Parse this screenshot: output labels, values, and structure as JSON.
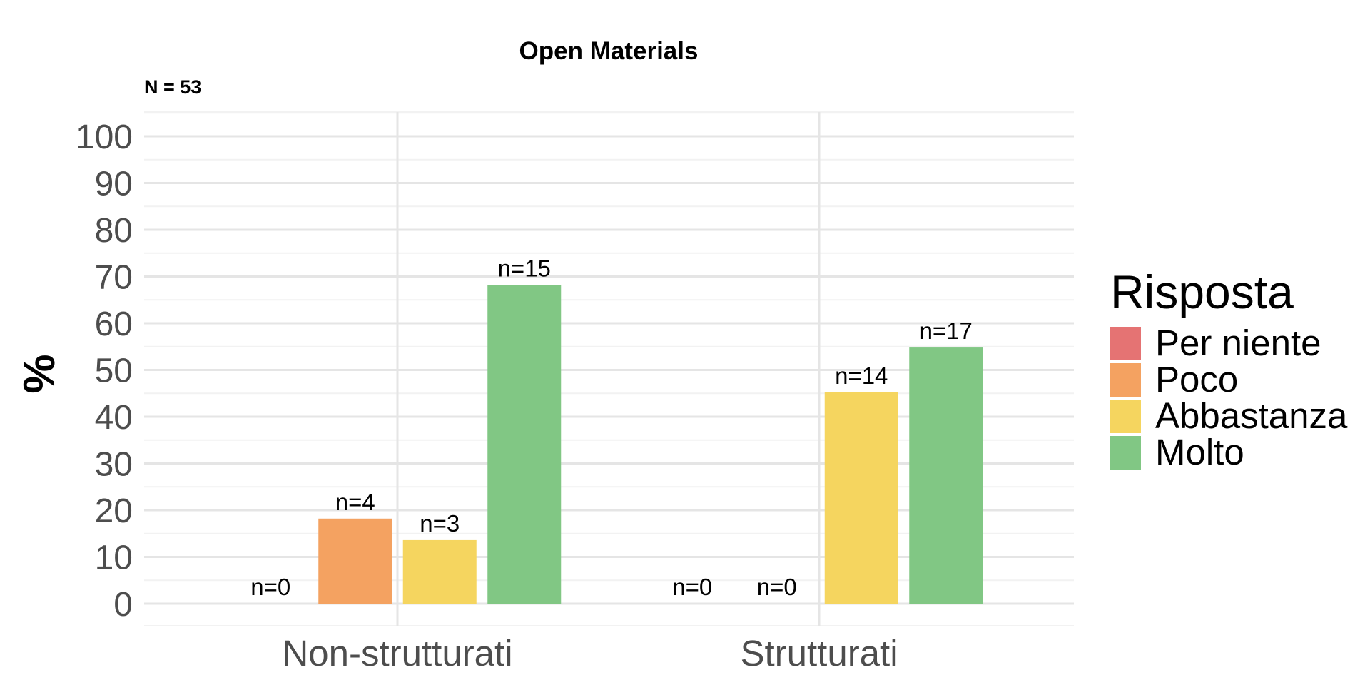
{
  "chart_data": {
    "type": "bar",
    "title": "Open Materials",
    "subtitle": "N = 53",
    "xlabel": "",
    "ylabel": "%",
    "ylim": [
      0,
      105
    ],
    "yticks": [
      "0",
      "10",
      "20",
      "30",
      "40",
      "50",
      "60",
      "70",
      "80",
      "90",
      "100"
    ],
    "grid": true,
    "categories": [
      "Non-strutturati",
      "Strutturati"
    ],
    "legend": {
      "title": "Risposta",
      "position": "right"
    },
    "series": [
      {
        "name": "Per niente",
        "color": "#E57373",
        "values": [
          0,
          0
        ],
        "labels": [
          "n=0",
          "n=0"
        ]
      },
      {
        "name": "Poco",
        "color": "#F4A261",
        "values": [
          18.2,
          0
        ],
        "labels": [
          "n=4",
          "n=0"
        ]
      },
      {
        "name": "Abbastanza",
        "color": "#F5D55F",
        "values": [
          13.6,
          45.2
        ],
        "labels": [
          "n=3",
          "n=14"
        ]
      },
      {
        "name": "Molto",
        "color": "#81C784",
        "values": [
          68.2,
          54.8
        ],
        "labels": [
          "n=15",
          "n=17"
        ]
      }
    ]
  }
}
